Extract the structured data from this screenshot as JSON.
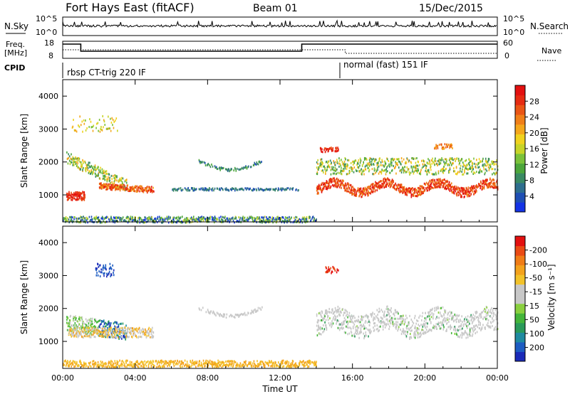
{
  "header": {
    "station": "Fort Hays East (fitACF)",
    "beam": "Beam 01",
    "date": "15/Dec/2015"
  },
  "strip_labels": {
    "nsky": "N.Sky",
    "nsky_top": "10^5",
    "nsky_bottom": "10^0",
    "nsearch": "N.Search",
    "nsearch_top": "10^5",
    "nsearch_bottom": "10^0",
    "freq_line1": "Freq.",
    "freq_line2": "[MHz]",
    "freq_top": "18",
    "freq_bottom": "8",
    "nave_top": "60",
    "nave_bottom": "0",
    "nave": "Nave",
    "cpid": "CPID"
  },
  "cpid_segments": [
    {
      "label": "rbsp CT-trig 220 IF",
      "start_hour": 0,
      "end_hour": 15.6
    },
    {
      "label": "normal (fast) 151 IF",
      "start_hour": 15.6,
      "end_hour": 24
    }
  ],
  "chart_data": [
    {
      "type": "heatmap",
      "name": "power-panel",
      "xlabel": "",
      "ylabel": "Slant Range [km]",
      "xlim_hours": [
        0,
        24
      ],
      "x_ticks": [
        "00:00",
        "04:00",
        "08:00",
        "12:00",
        "16:00",
        "20:00",
        "00:00"
      ],
      "y_ticks": [
        1000,
        2000,
        3000,
        4000
      ],
      "ylim": [
        180,
        4500
      ],
      "colorbar": {
        "label": "Power [dB]",
        "ticks": [
          "4",
          "8",
          "12",
          "16",
          "20",
          "24",
          "28"
        ],
        "colors": [
          "#1433e6",
          "#1f4fb4",
          "#2e6e8e",
          "#3a8a63",
          "#4ca63b",
          "#7bc23a",
          "#c7d428",
          "#f0d21e",
          "#f4a71b",
          "#f07f18",
          "#ea5515",
          "#e62b12",
          "#e31010"
        ]
      }
    },
    {
      "type": "heatmap",
      "name": "velocity-panel",
      "xlabel": "Time UT",
      "ylabel": "Slant Range [km]",
      "xlim_hours": [
        0,
        24
      ],
      "x_ticks": [
        "00:00",
        "04:00",
        "08:00",
        "12:00",
        "16:00",
        "20:00",
        "00:00"
      ],
      "y_ticks": [
        1000,
        2000,
        3000,
        4000
      ],
      "ylim": [
        180,
        4500
      ],
      "colorbar": {
        "label": "Velocity [m s⁻¹]",
        "ticks": [
          "200",
          "100",
          "50",
          "15",
          "-15",
          "-50",
          "-100",
          "-200"
        ],
        "colors": [
          "#1a2ab8",
          "#1d5cc2",
          "#1f8aa0",
          "#2a9a5a",
          "#44b53a",
          "#8ad03e",
          "#c8c8c8",
          "#c8c8c8",
          "#f2c22a",
          "#f3a21c",
          "#f07c16",
          "#ea4a14",
          "#e31010"
        ]
      }
    }
  ]
}
